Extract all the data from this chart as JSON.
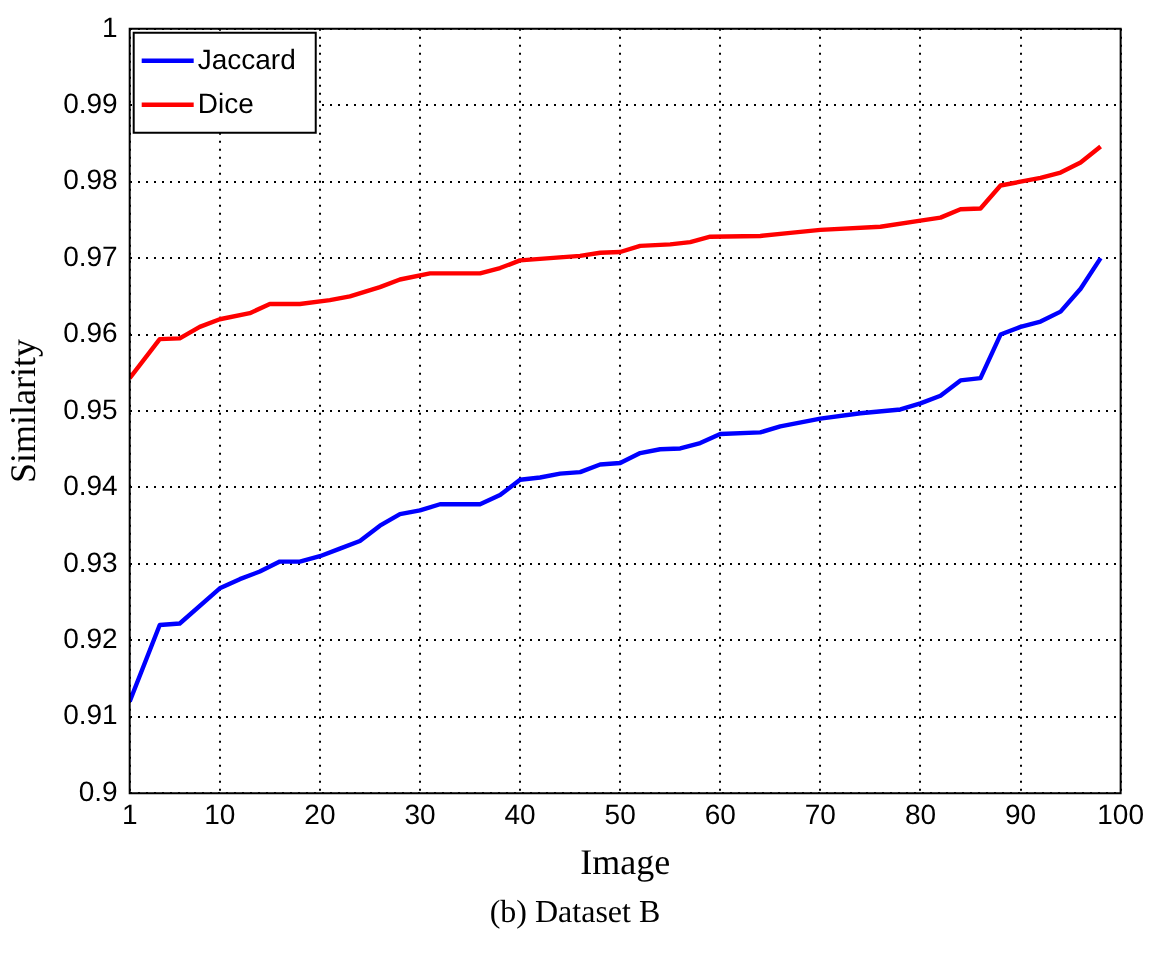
{
  "chart_data": {
    "type": "line",
    "xlabel": "Image",
    "ylabel": "Similarity",
    "annotations": [
      "(b) Dataset B"
    ],
    "xlim": [
      1,
      100
    ],
    "xticks": [
      1,
      10,
      20,
      30,
      40,
      50,
      60,
      70,
      80,
      90,
      100
    ],
    "ylim": [
      0.9,
      1
    ],
    "yticks": [
      0.9,
      0.91,
      0.92,
      0.93,
      0.94,
      0.95,
      0.96,
      0.97,
      0.98,
      0.99,
      1
    ],
    "grid": true,
    "legend": "top left",
    "marker": "none",
    "line_style": "solid",
    "series": [
      {
        "name": "Jaccard",
        "color": "#0000ff",
        "x": [
          1,
          4,
          6,
          10,
          12,
          14,
          16,
          18,
          20,
          22,
          24,
          26,
          28,
          30,
          32,
          36,
          38,
          40,
          42,
          44,
          46,
          48,
          50,
          52,
          54,
          56,
          58,
          60,
          64,
          66,
          70,
          74,
          78,
          80,
          82,
          84,
          86,
          88,
          90,
          92,
          94,
          96,
          98
        ],
        "values": [
          0.912,
          0.922,
          0.9222,
          0.9268,
          0.928,
          0.929,
          0.9303,
          0.9303,
          0.931,
          0.932,
          0.933,
          0.935,
          0.9365,
          0.937,
          0.9378,
          0.9378,
          0.939,
          0.941,
          0.9413,
          0.9418,
          0.942,
          0.943,
          0.9432,
          0.9445,
          0.945,
          0.9451,
          0.9458,
          0.947,
          0.9472,
          0.948,
          0.949,
          0.9497,
          0.9502,
          0.951,
          0.952,
          0.954,
          0.9543,
          0.96,
          0.961,
          0.9617,
          0.963,
          0.966,
          0.97
        ]
      },
      {
        "name": "Dice",
        "color": "#ff0000",
        "x": [
          1,
          4,
          6,
          8,
          10,
          13,
          15,
          18,
          21,
          23,
          26,
          28,
          31,
          36,
          38,
          40,
          43,
          46,
          48,
          50,
          52,
          55,
          57,
          59,
          64,
          67,
          70,
          76,
          80,
          82,
          84,
          86,
          88,
          90,
          92,
          94,
          96,
          98
        ],
        "values": [
          0.9543,
          0.9594,
          0.9595,
          0.961,
          0.962,
          0.9628,
          0.964,
          0.964,
          0.9645,
          0.965,
          0.9662,
          0.9672,
          0.968,
          0.968,
          0.9687,
          0.9697,
          0.97,
          0.9703,
          0.9707,
          0.9708,
          0.9716,
          0.9718,
          0.9721,
          0.9728,
          0.9729,
          0.9733,
          0.9737,
          0.9741,
          0.9749,
          0.9753,
          0.9764,
          0.9765,
          0.9795,
          0.98,
          0.9805,
          0.9812,
          0.9825,
          0.9846
        ]
      }
    ]
  }
}
